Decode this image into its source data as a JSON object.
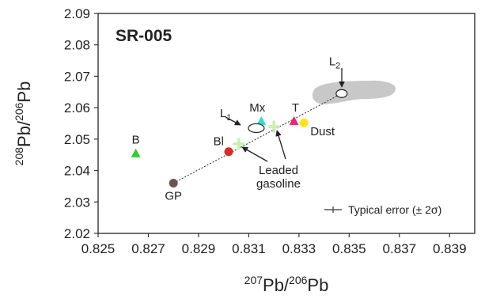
{
  "chart_data": {
    "type": "scatter",
    "title": "SR-005",
    "xlabel": {
      "sup1": "207",
      "base1": "Pb/",
      "sup2": "206",
      "base2": "Pb"
    },
    "ylabel": {
      "sup1": "208",
      "base1": "Pb/",
      "sup2": "206",
      "base2": "Pb"
    },
    "xlim": [
      0.825,
      0.84
    ],
    "ylim": [
      2.02,
      2.09
    ],
    "xticks": [
      0.825,
      0.827,
      0.829,
      0.831,
      0.833,
      0.835,
      0.837,
      0.839
    ],
    "xtick_labels": [
      "0.825",
      "0.827",
      "0.829",
      "0.831",
      "0.833",
      "0.835",
      "0.837",
      "0.839"
    ],
    "yticks": [
      2.02,
      2.03,
      2.04,
      2.05,
      2.06,
      2.07,
      2.08,
      2.09
    ],
    "ytick_labels": [
      "2.02",
      "2.03",
      "2.04",
      "2.05",
      "2.06",
      "2.07",
      "2.08",
      "2.09"
    ],
    "grid": false,
    "mixing_line": {
      "from": [
        0.828,
        2.036
      ],
      "to": [
        0.8347,
        2.0645
      ]
    },
    "points": [
      {
        "label": "B",
        "x": 0.8265,
        "y": 2.0455,
        "marker": "triangle",
        "color": "#33cc33"
      },
      {
        "label": "GP",
        "x": 0.828,
        "y": 2.036,
        "marker": "circle",
        "color": "#6b5450"
      },
      {
        "label": "Bl",
        "x": 0.8302,
        "y": 2.046,
        "marker": "circle",
        "color": "#dd2a22"
      },
      {
        "label": "Mx",
        "x": 0.8315,
        "y": 2.0558,
        "marker": "triangle",
        "color": "#33ddcc"
      },
      {
        "label": "T",
        "x": 0.8328,
        "y": 2.0558,
        "marker": "triangle",
        "color": "#ee2277"
      },
      {
        "label": "Dust",
        "x": 0.8332,
        "y": 2.0552,
        "marker": "circle",
        "color": "#ffe21a"
      }
    ],
    "gasoline_points": [
      {
        "x": 0.8306,
        "y": 2.0485
      },
      {
        "x": 0.832,
        "y": 2.054
      }
    ],
    "gasoline_color": "#c8efb0",
    "ellipses": [
      {
        "label": "L1",
        "label_base": "L",
        "label_sub": "1",
        "x": 0.8313,
        "y": 2.0535
      },
      {
        "label": "L2",
        "label_base": "L",
        "label_sub": "2",
        "x": 0.8347,
        "y": 2.0645
      }
    ],
    "region": {
      "color": "#c8c8c8"
    },
    "annotation": {
      "lines": [
        "Leaded",
        "gasoline"
      ]
    },
    "legend": {
      "text": "Typical error (± 2σ)",
      "position": "bottom-right"
    }
  }
}
